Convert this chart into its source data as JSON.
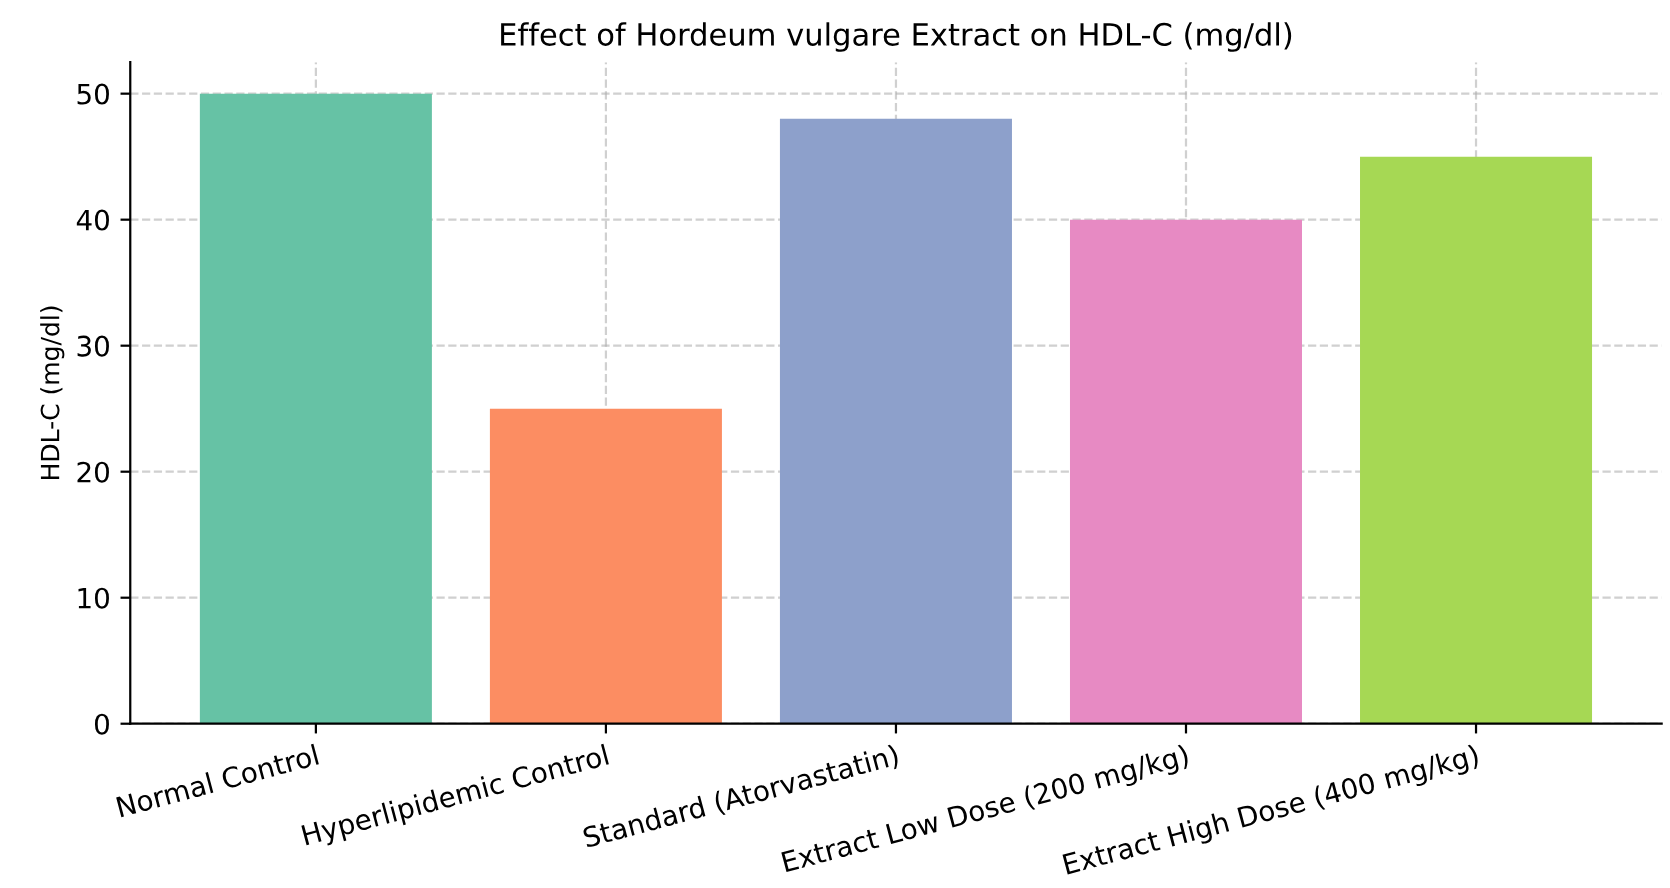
{
  "chart_data": {
    "type": "bar",
    "title": "Effect of Hordeum vulgare Extract on HDL-C (mg/dl)",
    "ylabel": "HDL-C (mg/dl)",
    "categories": [
      "Normal Control",
      "Hyperlipidemic Control",
      "Standard (Atorvastatin)",
      "Extract Low Dose (200 mg/kg)",
      "Extract High Dose (400 mg/kg)"
    ],
    "values": [
      50,
      25,
      48,
      40,
      45
    ],
    "colors": [
      "#66c2a5",
      "#fc8d62",
      "#8da0cb",
      "#e78ac3",
      "#a6d854"
    ],
    "ylim": [
      0,
      52.5
    ],
    "yticks": [
      0,
      10,
      20,
      30,
      40,
      50
    ],
    "grid": true
  }
}
